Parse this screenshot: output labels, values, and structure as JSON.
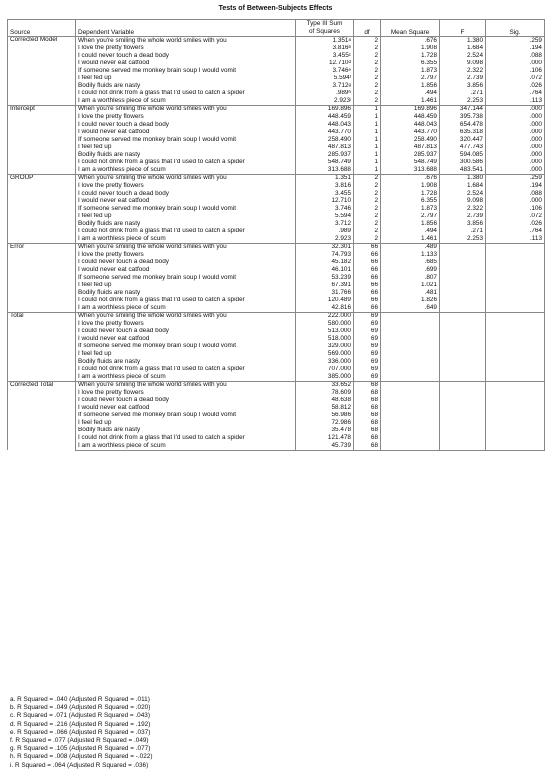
{
  "title": "Tests of Between-Subjects Effects",
  "columns": {
    "source": "Source",
    "dependent": "Dependent Variable",
    "ss_line1": "Type III Sum",
    "ss_line2": "of Squares",
    "df": "df",
    "ms": "Mean Square",
    "f": "F",
    "sig": "Sig."
  },
  "groups": [
    {
      "source": "Corrected Model",
      "rows": [
        {
          "dv": "When you're smiling the whole world smiles with you",
          "ss": "1.351",
          "sup": "a",
          "df": "2",
          "ms": ".676",
          "f": "1.380",
          "sig": ".259"
        },
        {
          "dv": "I love the pretty flowers",
          "ss": "3.816",
          "sup": "b",
          "df": "2",
          "ms": "1.908",
          "f": "1.684",
          "sig": ".194"
        },
        {
          "dv": "I could never touch a dead body",
          "ss": "3.455",
          "sup": "c",
          "df": "2",
          "ms": "1.728",
          "f": "2.524",
          "sig": ".088"
        },
        {
          "dv": "I would never eat catfood",
          "ss": "12.710",
          "sup": "d",
          "df": "2",
          "ms": "6.355",
          "f": "9.098",
          "sig": ".000"
        },
        {
          "dv": "If someone served me monkey brain soup I would vomit",
          "ss": "3.746",
          "sup": "e",
          "df": "2",
          "ms": "1.873",
          "f": "2.322",
          "sig": ".106"
        },
        {
          "dv": "I feel fed up",
          "ss": "5.594",
          "sup": "f",
          "df": "2",
          "ms": "2.797",
          "f": "2.739",
          "sig": ".072"
        },
        {
          "dv": "Bodily fluids are nasty",
          "ss": "3.712",
          "sup": "g",
          "df": "2",
          "ms": "1.856",
          "f": "3.856",
          "sig": ".026"
        },
        {
          "dv": "I could not drink from a glass that I'd used to catch a spider",
          "ss": ".989",
          "sup": "h",
          "df": "2",
          "ms": ".494",
          "f": ".271",
          "sig": ".764"
        },
        {
          "dv": "I am a worthless piece of scum",
          "ss": "2.923",
          "sup": "i",
          "df": "2",
          "ms": "1.461",
          "f": "2.253",
          "sig": ".113"
        }
      ]
    },
    {
      "source": "Intercept",
      "rows": [
        {
          "dv": "When you're smiling the whole world smiles with you",
          "ss": "169.896",
          "df": "1",
          "ms": "169.896",
          "f": "347.144",
          "sig": ".000"
        },
        {
          "dv": "I love the pretty flowers",
          "ss": "448.459",
          "df": "1",
          "ms": "448.459",
          "f": "395.738",
          "sig": ".000"
        },
        {
          "dv": "I could never touch a dead body",
          "ss": "448.043",
          "df": "1",
          "ms": "448.043",
          "f": "654.478",
          "sig": ".000"
        },
        {
          "dv": "I would never eat catfood",
          "ss": "443.770",
          "df": "1",
          "ms": "443.770",
          "f": "635.318",
          "sig": ".000"
        },
        {
          "dv": "If someone served me monkey brain soup I would vomit",
          "ss": "258.490",
          "df": "1",
          "ms": "258.490",
          "f": "320.447",
          "sig": ".000"
        },
        {
          "dv": "I feel fed up",
          "ss": "487.813",
          "df": "1",
          "ms": "487.813",
          "f": "477.743",
          "sig": ".000"
        },
        {
          "dv": "Bodily fluids are nasty",
          "ss": "285.937",
          "df": "1",
          "ms": "285.937",
          "f": "594.085",
          "sig": ".000"
        },
        {
          "dv": "I could not drink from a glass that I'd used to catch a spider",
          "ss": "548.749",
          "df": "1",
          "ms": "548.749",
          "f": "300.586",
          "sig": ".000"
        },
        {
          "dv": "I am a worthless piece of scum",
          "ss": "313.688",
          "df": "1",
          "ms": "313.688",
          "f": "483.541",
          "sig": ".000"
        }
      ]
    },
    {
      "source": "GROUP",
      "rows": [
        {
          "dv": "When you're smiling the whole world smiles with you",
          "ss": "1.351",
          "df": "2",
          "ms": ".676",
          "f": "1.380",
          "sig": ".259"
        },
        {
          "dv": "I love the pretty flowers",
          "ss": "3.816",
          "df": "2",
          "ms": "1.908",
          "f": "1.684",
          "sig": ".194"
        },
        {
          "dv": "I could never touch a dead body",
          "ss": "3.455",
          "df": "2",
          "ms": "1.728",
          "f": "2.524",
          "sig": ".088"
        },
        {
          "dv": "I would never eat catfood",
          "ss": "12.710",
          "df": "2",
          "ms": "6.355",
          "f": "9.098",
          "sig": ".000"
        },
        {
          "dv": "If someone served me monkey brain soup I would vomit",
          "ss": "3.746",
          "df": "2",
          "ms": "1.873",
          "f": "2.322",
          "sig": ".106"
        },
        {
          "dv": "I feel fed up",
          "ss": "5.594",
          "df": "2",
          "ms": "2.797",
          "f": "2.739",
          "sig": ".072"
        },
        {
          "dv": "Bodily fluids are nasty",
          "ss": "3.712",
          "df": "2",
          "ms": "1.856",
          "f": "3.856",
          "sig": ".026"
        },
        {
          "dv": "I could not drink from a glass that I'd used to catch a spider",
          "ss": ".989",
          "df": "2",
          "ms": ".494",
          "f": ".271",
          "sig": ".764"
        },
        {
          "dv": "I am a worthless piece of scum",
          "ss": "2.923",
          "df": "2",
          "ms": "1.461",
          "f": "2.253",
          "sig": ".113"
        }
      ]
    },
    {
      "source": "Error",
      "rows": [
        {
          "dv": "When you're smiling the whole world smiles with you",
          "ss": "32.301",
          "df": "66",
          "ms": ".489",
          "f": "",
          "sig": ""
        },
        {
          "dv": "I love the pretty flowers",
          "ss": "74.793",
          "df": "66",
          "ms": "1.133",
          "f": "",
          "sig": ""
        },
        {
          "dv": "I could never touch a dead body",
          "ss": "45.182",
          "df": "66",
          "ms": ".685",
          "f": "",
          "sig": ""
        },
        {
          "dv": "I would never eat catfood",
          "ss": "46.101",
          "df": "66",
          "ms": ".699",
          "f": "",
          "sig": ""
        },
        {
          "dv": "If someone served me monkey brain soup I would vomit",
          "ss": "53.239",
          "df": "66",
          "ms": ".807",
          "f": "",
          "sig": ""
        },
        {
          "dv": "I feel fed up",
          "ss": "67.391",
          "df": "66",
          "ms": "1.021",
          "f": "",
          "sig": ""
        },
        {
          "dv": "Bodily fluids are nasty",
          "ss": "31.766",
          "df": "66",
          "ms": ".481",
          "f": "",
          "sig": ""
        },
        {
          "dv": "I could not drink from a glass that I'd used to catch a spider",
          "ss": "120.489",
          "df": "66",
          "ms": "1.826",
          "f": "",
          "sig": ""
        },
        {
          "dv": "I am a worthless piece of scum",
          "ss": "42.816",
          "df": "66",
          "ms": ".649",
          "f": "",
          "sig": ""
        }
      ]
    },
    {
      "source": "Total",
      "rows": [
        {
          "dv": "When you're smiling the whole world smiles with you",
          "ss": "222.000",
          "df": "69",
          "ms": "",
          "f": "",
          "sig": ""
        },
        {
          "dv": "I love the pretty flowers",
          "ss": "580.000",
          "df": "69",
          "ms": "",
          "f": "",
          "sig": ""
        },
        {
          "dv": "I could never touch a dead body",
          "ss": "513.000",
          "df": "69",
          "ms": "",
          "f": "",
          "sig": ""
        },
        {
          "dv": "I would never eat catfood",
          "ss": "518.000",
          "df": "69",
          "ms": "",
          "f": "",
          "sig": ""
        },
        {
          "dv": "If someone served me monkey brain soup I would vomit",
          "ss": "329.000",
          "df": "69",
          "ms": "",
          "f": "",
          "sig": ""
        },
        {
          "dv": "I feel fed up",
          "ss": "569.000",
          "df": "69",
          "ms": "",
          "f": "",
          "sig": ""
        },
        {
          "dv": "Bodily fluids are nasty",
          "ss": "336.000",
          "df": "69",
          "ms": "",
          "f": "",
          "sig": ""
        },
        {
          "dv": "I could not drink from a glass that I'd used to catch a spider",
          "ss": "707.000",
          "df": "69",
          "ms": "",
          "f": "",
          "sig": ""
        },
        {
          "dv": "I am a worthless piece of scum",
          "ss": "385.000",
          "df": "69",
          "ms": "",
          "f": "",
          "sig": ""
        }
      ]
    },
    {
      "source": "Corrected Total",
      "rows": [
        {
          "dv": "When you're smiling the whole world smiles with you",
          "ss": "33.652",
          "df": "68",
          "ms": "",
          "f": "",
          "sig": ""
        },
        {
          "dv": "I love the pretty flowers",
          "ss": "78.609",
          "df": "68",
          "ms": "",
          "f": "",
          "sig": ""
        },
        {
          "dv": "I could never touch a dead body",
          "ss": "48.638",
          "df": "68",
          "ms": "",
          "f": "",
          "sig": ""
        },
        {
          "dv": "I would never eat catfood",
          "ss": "58.812",
          "df": "68",
          "ms": "",
          "f": "",
          "sig": ""
        },
        {
          "dv": "If someone served me monkey brain soup I would vomit",
          "ss": "56.986",
          "df": "68",
          "ms": "",
          "f": "",
          "sig": ""
        },
        {
          "dv": "I feel fed up",
          "ss": "72.986",
          "df": "68",
          "ms": "",
          "f": "",
          "sig": ""
        },
        {
          "dv": "Bodily fluids are nasty",
          "ss": "35.478",
          "df": "68",
          "ms": "",
          "f": "",
          "sig": ""
        },
        {
          "dv": "I could not drink from a glass that I'd used to catch a spider",
          "ss": "121.478",
          "df": "68",
          "ms": "",
          "f": "",
          "sig": ""
        },
        {
          "dv": "I am a worthless piece of scum",
          "ss": "45.739",
          "df": "68",
          "ms": "",
          "f": "",
          "sig": ""
        }
      ]
    }
  ],
  "footnotes": [
    "a. R Squared = .040 (Adjusted R Squared = .011)",
    "b. R Squared = .049 (Adjusted R Squared = .020)",
    "c. R Squared = .071 (Adjusted R Squared = .043)",
    "d. R Squared = .216 (Adjusted R Squared = .192)",
    "e. R Squared = .066 (Adjusted R Squared = .037)",
    "f. R Squared = .077 (Adjusted R Squared = .049)",
    "g. R Squared = .105 (Adjusted R Squared = .077)",
    "h. R Squared = .008 (Adjusted R Squared = -.022)",
    "i. R Squared = .064 (Adjusted R Squared = .036)"
  ]
}
